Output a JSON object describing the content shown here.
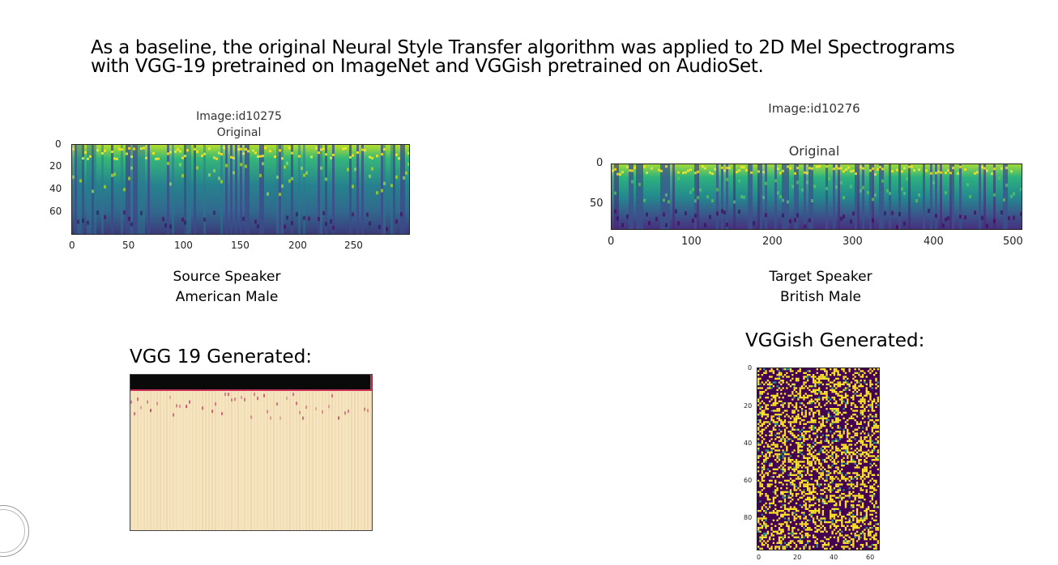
{
  "heading": {
    "line1": "As a baseline, the original Neural Style Transfer algorithm was applied to 2D Mel Spectrograms",
    "line2": "with VGG-19 pretrained on ImageNet and VGGish pretrained on AudioSet."
  },
  "source_plot": {
    "title_line1": "Image:id10275",
    "title_line2": "Original",
    "y_ticks": [
      "0",
      "20",
      "40",
      "60"
    ],
    "x_ticks": [
      "0",
      "50",
      "100",
      "150",
      "200",
      "250"
    ],
    "caption_line1": "Source Speaker",
    "caption_line2": "American Male"
  },
  "target_plot": {
    "title_line1": "Image:id10276",
    "title_line2": "Original",
    "y_ticks": [
      "0",
      "50"
    ],
    "x_ticks": [
      "0",
      "100",
      "200",
      "300",
      "400",
      "500"
    ],
    "caption_line1": "Target Speaker",
    "caption_line2": "British Male"
  },
  "vgg19": {
    "label": "VGG 19 Generated:"
  },
  "vggish": {
    "label": "VGGish Generated:",
    "y_ticks": [
      "0",
      "20",
      "40",
      "60",
      "80"
    ],
    "x_ticks": [
      "0",
      "20",
      "40",
      "60"
    ]
  },
  "colors": {
    "viridis_dark": "#440154",
    "viridis_mid": "#21918c",
    "viridis_yellow": "#fde725",
    "vgg_bg": "#f6e6c0",
    "vgg_band": "#0a0a0a",
    "vgg_red": "#c8305a"
  }
}
